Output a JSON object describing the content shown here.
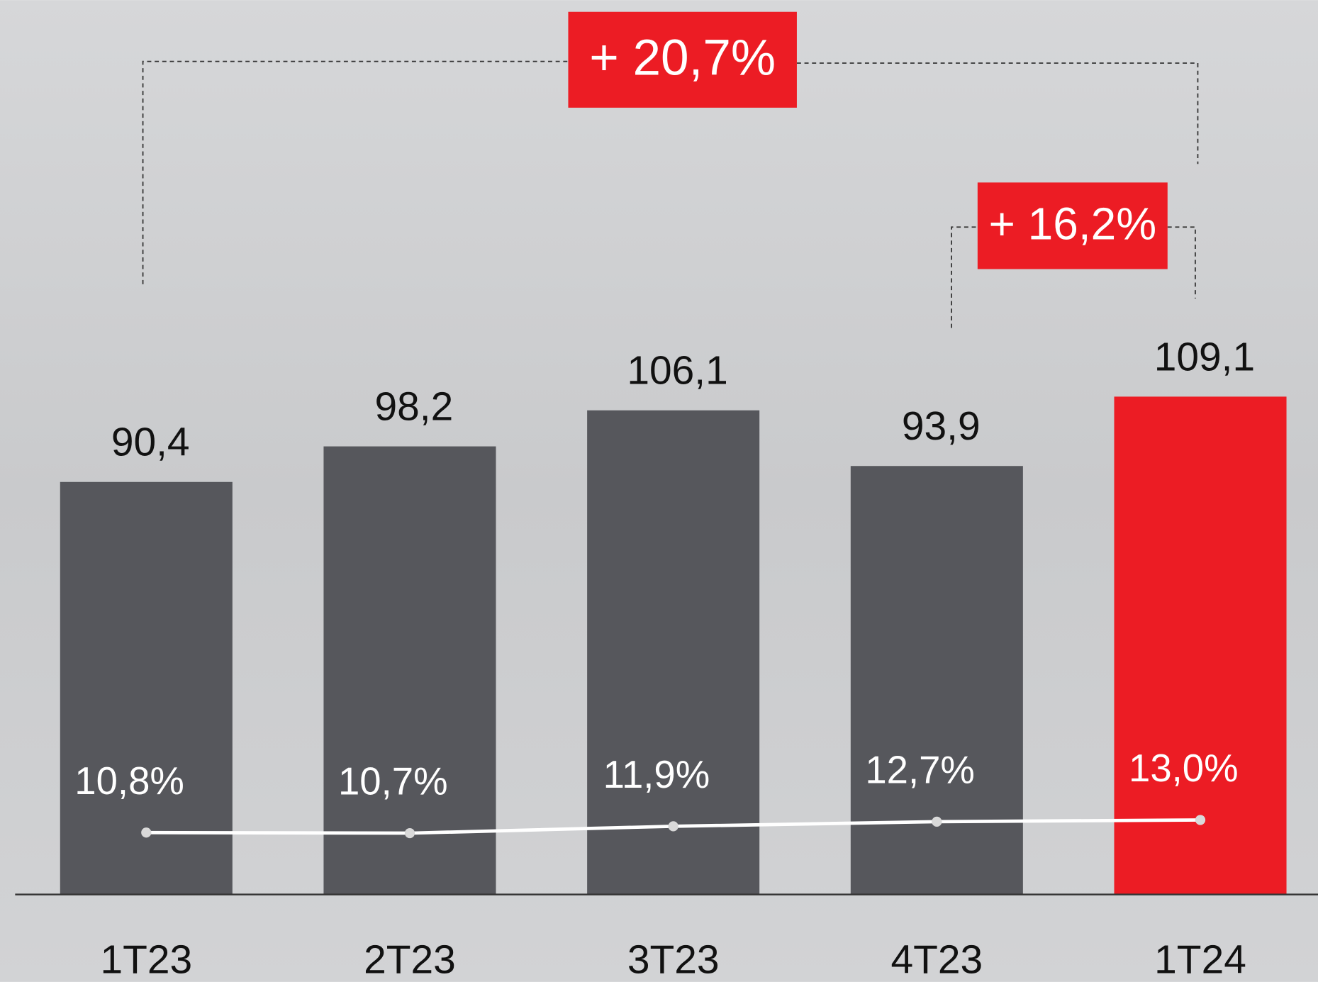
{
  "chart_data": {
    "type": "bar",
    "categories": [
      "1T23",
      "2T23",
      "3T23",
      "4T23",
      "1T24"
    ],
    "values": [
      90.4,
      98.2,
      106.1,
      93.9,
      109.1
    ],
    "value_labels": [
      "90,4",
      "98,2",
      "106,1",
      "93,9",
      "109,1"
    ],
    "colors": [
      "#56575c",
      "#56575c",
      "#56575c",
      "#56575c",
      "#ec1c24"
    ],
    "ylim": [
      0,
      196
    ],
    "line": {
      "type": "line",
      "axis": "y2",
      "values": [
        10.8,
        10.7,
        11.9,
        12.7,
        13.0
      ],
      "value_labels": [
        "10,8%",
        "10,7%",
        "11,9%",
        "12,7%",
        "13,0%"
      ],
      "color": "#ffffff"
    },
    "y2lim": [
      0,
      156
    ],
    "annotations": [
      "+ 20,7%",
      "+ 16,2%"
    ],
    "annotation_color": "#ec1c24"
  }
}
